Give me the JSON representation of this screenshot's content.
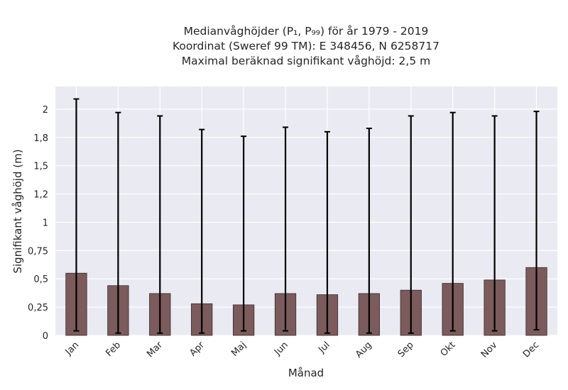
{
  "chart_data": {
    "type": "bar",
    "title_lines": [
      "Medianvåghöjder (P₁, P₉₉) för år 1979 - 2019",
      "Koordinat (Sweref 99 TM): E 348456, N 6258717",
      "Maximal beräknad signifikant våghöjd: 2,5 m"
    ],
    "xlabel": "Månad",
    "ylabel": "Signifikant våghöjd (m)",
    "categories": [
      "Jan",
      "Feb",
      "Mar",
      "Apr",
      "Maj",
      "Jun",
      "Jul",
      "Aug",
      "Sep",
      "Okt",
      "Nov",
      "Dec"
    ],
    "values": [
      0.55,
      0.44,
      0.37,
      0.28,
      0.27,
      0.37,
      0.36,
      0.37,
      0.4,
      0.46,
      0.49,
      0.6
    ],
    "p1": [
      0.04,
      0.02,
      0.02,
      0.02,
      0.04,
      0.04,
      0.02,
      0.02,
      0.02,
      0.04,
      0.04,
      0.05
    ],
    "p99": [
      2.09,
      1.97,
      1.94,
      1.82,
      1.76,
      1.84,
      1.8,
      1.83,
      1.94,
      1.97,
      1.94,
      1.98
    ],
    "ylim": [
      0,
      2.2
    ],
    "yticks": [
      {
        "v": 0,
        "label": "0"
      },
      {
        "v": 0.25,
        "label": "0,25"
      },
      {
        "v": 0.5,
        "label": "0,5"
      },
      {
        "v": 0.75,
        "label": "0,75"
      },
      {
        "v": 1.0,
        "label": "1"
      },
      {
        "v": 1.25,
        "label": "1,2"
      },
      {
        "v": 1.5,
        "label": "1,5"
      },
      {
        "v": 1.75,
        "label": "1,8"
      },
      {
        "v": 2.0,
        "label": "2"
      }
    ],
    "grid": true,
    "colors": {
      "bar": "#7b5b5b",
      "bar_edge": "#3a2a2a",
      "plot_bg": "#eaeaf2",
      "grid": "#ffffff",
      "error_bar": "#000000"
    }
  }
}
